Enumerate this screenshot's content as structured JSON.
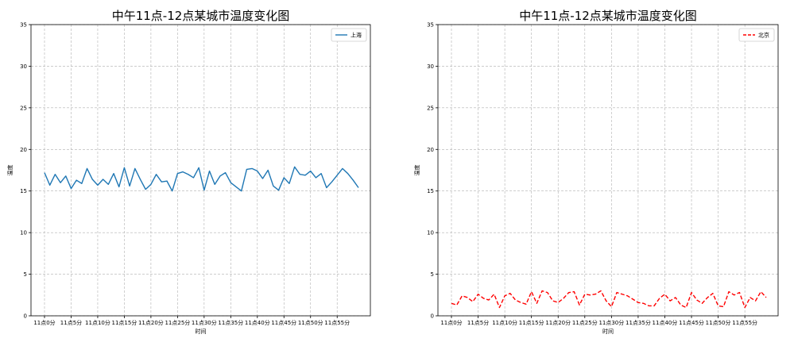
{
  "chart_data": [
    {
      "type": "line",
      "title": "中午11点-12点某城市温度变化图",
      "xlabel": "时间",
      "ylabel": "温度",
      "ylim": [
        0,
        35
      ],
      "yticks": [
        0,
        5,
        10,
        15,
        20,
        25,
        30,
        35
      ],
      "grid": true,
      "grid_style": "dashed",
      "legend_position": "top-right",
      "x": [
        "11点0分",
        "11点1分",
        "11点2分",
        "11点3分",
        "11点4分",
        "11点5分",
        "11点6分",
        "11点7分",
        "11点8分",
        "11点9分",
        "11点10分",
        "11点11分",
        "11点12分",
        "11点13分",
        "11点14分",
        "11点15分",
        "11点16分",
        "11点17分",
        "11点18分",
        "11点19分",
        "11点20分",
        "11点21分",
        "11点22分",
        "11点23分",
        "11点24分",
        "11点25分",
        "11点26分",
        "11点27分",
        "11点28分",
        "11点29分",
        "11点30分",
        "11点31分",
        "11点32分",
        "11点33分",
        "11点34分",
        "11点35分",
        "11点36分",
        "11点37分",
        "11点38分",
        "11点39分",
        "11点40分",
        "11点41分",
        "11点42分",
        "11点43分",
        "11点44分",
        "11点45分",
        "11点46分",
        "11点47分",
        "11点48分",
        "11点49分",
        "11点50分",
        "11点51分",
        "11点52分",
        "11点53分",
        "11点54分",
        "11点55分",
        "11点56分",
        "11点57分",
        "11点58分",
        "11点59分"
      ],
      "xtick_labels": [
        "11点0分",
        "11点5分",
        "11点10分",
        "11点15分",
        "11点20分",
        "11点25分",
        "11点30分",
        "11点35分",
        "11点40分",
        "11点45分",
        "11点50分",
        "11点55分"
      ],
      "series": [
        {
          "name": "上海",
          "color": "#1f77b4",
          "linestyle": "solid",
          "values": [
            17.2,
            15.7,
            17.0,
            16.0,
            16.8,
            15.3,
            16.3,
            15.9,
            17.7,
            16.4,
            15.7,
            16.4,
            15.8,
            17.1,
            15.5,
            17.8,
            15.6,
            17.7,
            16.4,
            15.2,
            15.8,
            17.0,
            16.1,
            16.2,
            15.0,
            17.1,
            17.3,
            17.0,
            16.6,
            17.8,
            15.1,
            17.4,
            15.8,
            16.8,
            17.2,
            16.0,
            15.5,
            15.0,
            17.6,
            17.7,
            17.4,
            16.5,
            17.5,
            15.6,
            15.1,
            16.6,
            15.9,
            17.9,
            17.0,
            16.9,
            17.4,
            16.6,
            17.1,
            15.4,
            16.1,
            16.9,
            17.7,
            17.1,
            16.3,
            15.4
          ]
        }
      ]
    },
    {
      "type": "line",
      "title": "中午11点-12点某城市温度变化图",
      "xlabel": "时间",
      "ylabel": "温度",
      "ylim": [
        0,
        35
      ],
      "yticks": [
        0,
        5,
        10,
        15,
        20,
        25,
        30,
        35
      ],
      "grid": true,
      "grid_style": "dashed",
      "legend_position": "top-right",
      "x": [
        "11点0分",
        "11点1分",
        "11点2分",
        "11点3分",
        "11点4分",
        "11点5分",
        "11点6分",
        "11点7分",
        "11点8分",
        "11点9分",
        "11点10分",
        "11点11分",
        "11点12分",
        "11点13分",
        "11点14分",
        "11点15分",
        "11点16分",
        "11点17分",
        "11点18分",
        "11点19分",
        "11点20分",
        "11点21分",
        "11点22分",
        "11点23分",
        "11点24分",
        "11点25分",
        "11点26分",
        "11点27分",
        "11点28分",
        "11点29分",
        "11点30分",
        "11点31分",
        "11点32分",
        "11点33分",
        "11点34分",
        "11点35分",
        "11点36分",
        "11点37分",
        "11点38分",
        "11点39分",
        "11点40分",
        "11点41分",
        "11点42分",
        "11点43分",
        "11点44分",
        "11点45分",
        "11点46分",
        "11点47分",
        "11点48分",
        "11点49分",
        "11点50分",
        "11点51分",
        "11点52分",
        "11点53分",
        "11点54分",
        "11点55分",
        "11点56分",
        "11点57分",
        "11点58分",
        "11点59分"
      ],
      "xtick_labels": [
        "11点0分",
        "11点5分",
        "11点10分",
        "11点15分",
        "11点20分",
        "11点25分",
        "11点30分",
        "11点35分",
        "11点40分",
        "11点45分",
        "11点50分",
        "11点55分"
      ],
      "series": [
        {
          "name": "北京",
          "color": "#ff0000",
          "linestyle": "dashed",
          "values": [
            1.5,
            1.3,
            2.4,
            2.2,
            1.7,
            2.6,
            2.1,
            1.9,
            2.6,
            1.0,
            2.4,
            2.7,
            1.9,
            1.6,
            1.4,
            2.9,
            1.5,
            3.0,
            2.8,
            1.8,
            1.6,
            2.1,
            2.8,
            2.9,
            1.3,
            2.6,
            2.5,
            2.6,
            3.0,
            1.8,
            1.1,
            2.8,
            2.6,
            2.4,
            2.0,
            1.6,
            1.5,
            1.2,
            1.2,
            2.1,
            2.6,
            1.8,
            2.2,
            1.3,
            1.0,
            2.8,
            1.9,
            1.5,
            2.2,
            2.7,
            1.2,
            1.1,
            2.9,
            2.5,
            2.8,
            1.0,
            2.2,
            1.8,
            2.9,
            2.2
          ]
        }
      ]
    }
  ]
}
